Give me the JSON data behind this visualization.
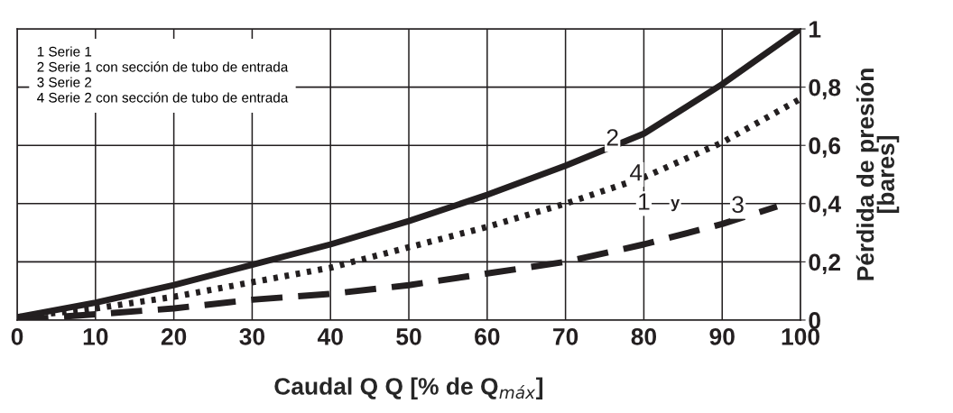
{
  "chart_data": {
    "type": "line",
    "xlabel": "Caudal Q Q [% de Q$_{máx}$]",
    "ylabel": "Pérdida de presión\n[bares]",
    "x": [
      0,
      10,
      20,
      30,
      40,
      50,
      60,
      70,
      80,
      90,
      100
    ],
    "series": [
      {
        "color": "#231f20",
        "line_style": "solid",
        "values": [
          0.01,
          0.06,
          0.12,
          0.19,
          0.26,
          0.34,
          0.43,
          0.53,
          0.64,
          0.81,
          1.0
        ]
      },
      {
        "color": "#231f20",
        "line_style": "dotted",
        "values": [
          0.01,
          0.04,
          0.08,
          0.13,
          0.18,
          0.25,
          0.32,
          0.4,
          0.49,
          0.61,
          0.76
        ]
      },
      {
        "color": "#231f20",
        "line_style": "dashed",
        "x": [
          0,
          10,
          20,
          30,
          40,
          50,
          60,
          70,
          80,
          90,
          97
        ],
        "values": [
          0.0,
          0.02,
          0.04,
          0.07,
          0.09,
          0.12,
          0.16,
          0.2,
          0.26,
          0.33,
          0.39
        ]
      }
    ],
    "xlim": [
      0,
      100
    ],
    "ylim": [
      0,
      1
    ],
    "xticks": [
      0,
      10,
      20,
      30,
      40,
      50,
      60,
      70,
      80,
      90,
      100
    ],
    "yticks": [
      0,
      {
        "value": 0.2,
        "label": "0,2"
      },
      {
        "value": 0.4,
        "label": "0,4"
      },
      {
        "value": 0.6,
        "label": "0,6"
      },
      {
        "value": 0.8,
        "label": "0,8"
      },
      1
    ],
    "grid": true,
    "legend": false,
    "annotations": [
      "1 Serie 1\n2 Serie 1 con sección de tubo de entrada\n3 Serie 2\n4 Serie 2 con sección de tubo de entrada",
      {
        "text": "2",
        "x": 76,
        "y": 0.62
      },
      {
        "text": "4",
        "x": 79,
        "y": 0.5
      },
      {
        "text": "1",
        "x": 80,
        "y": 0.4
      },
      {
        "text": "y",
        "x": 84,
        "y": 0.4
      },
      {
        "text": "3",
        "x": 92,
        "y": 0.39
      }
    ]
  }
}
